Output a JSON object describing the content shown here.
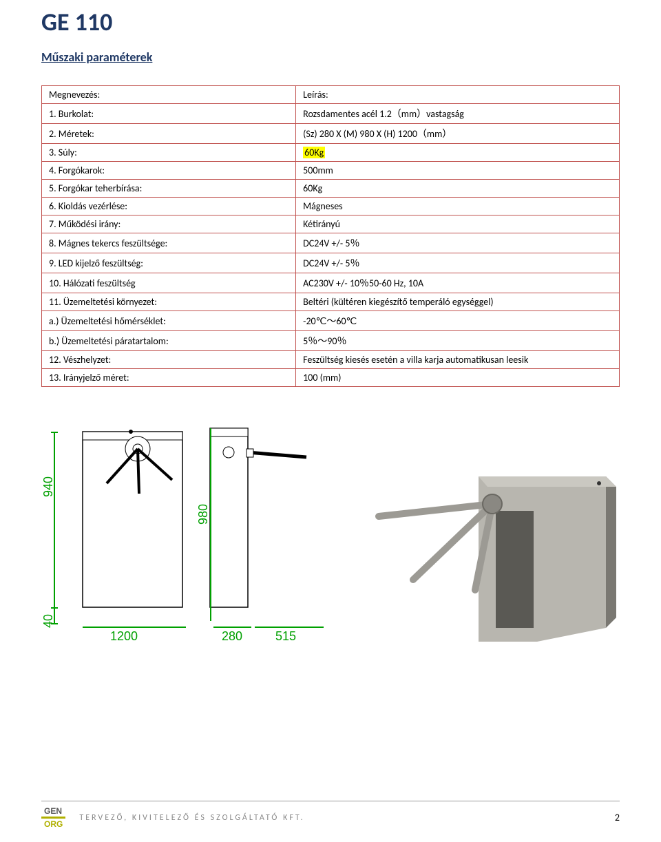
{
  "title": "GE 110",
  "subtitle": "Műszaki paraméterek",
  "table": {
    "header": {
      "label": "Megnevezés:",
      "value": "Leírás:"
    },
    "rows": [
      {
        "label": "1. Burkolat:",
        "value": "Rozsdamentes acél 1.2（mm）vastagság"
      },
      {
        "label": "2. Méretek:",
        "value": "(Sz) 280 X (M) 980 X (H) 1200（mm）"
      },
      {
        "label": "3. Súly:",
        "value": "60Kg",
        "highlight": true
      },
      {
        "label": "4. Forgókarok:",
        "value": "500mm"
      },
      {
        "label": "5. Forgókar teherbírása:",
        "value": "60Kg"
      },
      {
        "label": "6. Kioldás vezérlése:",
        "value": "Mágneses"
      },
      {
        "label": "7. Működési irány:",
        "value": "Kétirányú"
      },
      {
        "label": "8. Mágnes tekercs feszültsége:",
        "value": "DC24V +/- 5％"
      },
      {
        "label": "9. LED kijelző feszültség:",
        "value": "DC24V +/- 5％"
      },
      {
        "label": "10. Hálózati feszültség",
        "value": "AC230V +/- 10％50-60 Hz, 10A"
      },
      {
        "label": "11. Üzemeltetési környezet:",
        "value": "Beltéri (kültéren kiegészítő temperáló egységgel)"
      },
      {
        "label": "a.) Üzemeltetési hőmérséklet:",
        "value": "-20℃～60℃",
        "sub": true
      },
      {
        "label": "b.) Üzemeltetési páratartalom:",
        "value": "5％～90％",
        "sub": true
      },
      {
        "label": "12. Vészhelyzet:",
        "value": "Feszültség kiesés esetén a villa karja automatikusan leesik"
      },
      {
        "label": "13. Irányjelző méret:",
        "value": "100 (mm)"
      }
    ]
  },
  "diagram": {
    "dims": {
      "h_main": "940",
      "h_small": "40",
      "h_front": "980",
      "w_base": "1200",
      "w_front": "280",
      "w_depth": "515"
    },
    "colors": {
      "dim": "#00a000",
      "line": "#000000",
      "fill": "#ffffff"
    }
  },
  "photo": {
    "body_color": "#b8b6af",
    "shadow_color": "#7a7872",
    "arm_color": "#9c9a94"
  },
  "footer": {
    "logo_top": "GEN",
    "logo_bot": "ORG",
    "text": "TERVEZŐ, KIVITELEZŐ ÉS SZOLGÁLTATÓ KFT.",
    "page": "2"
  },
  "style": {
    "title_color": "#1f3864",
    "border_color": "#c0504d",
    "highlight_bg": "#ffff00",
    "font_body": 14,
    "font_title": 36,
    "font_subtitle": 18
  }
}
